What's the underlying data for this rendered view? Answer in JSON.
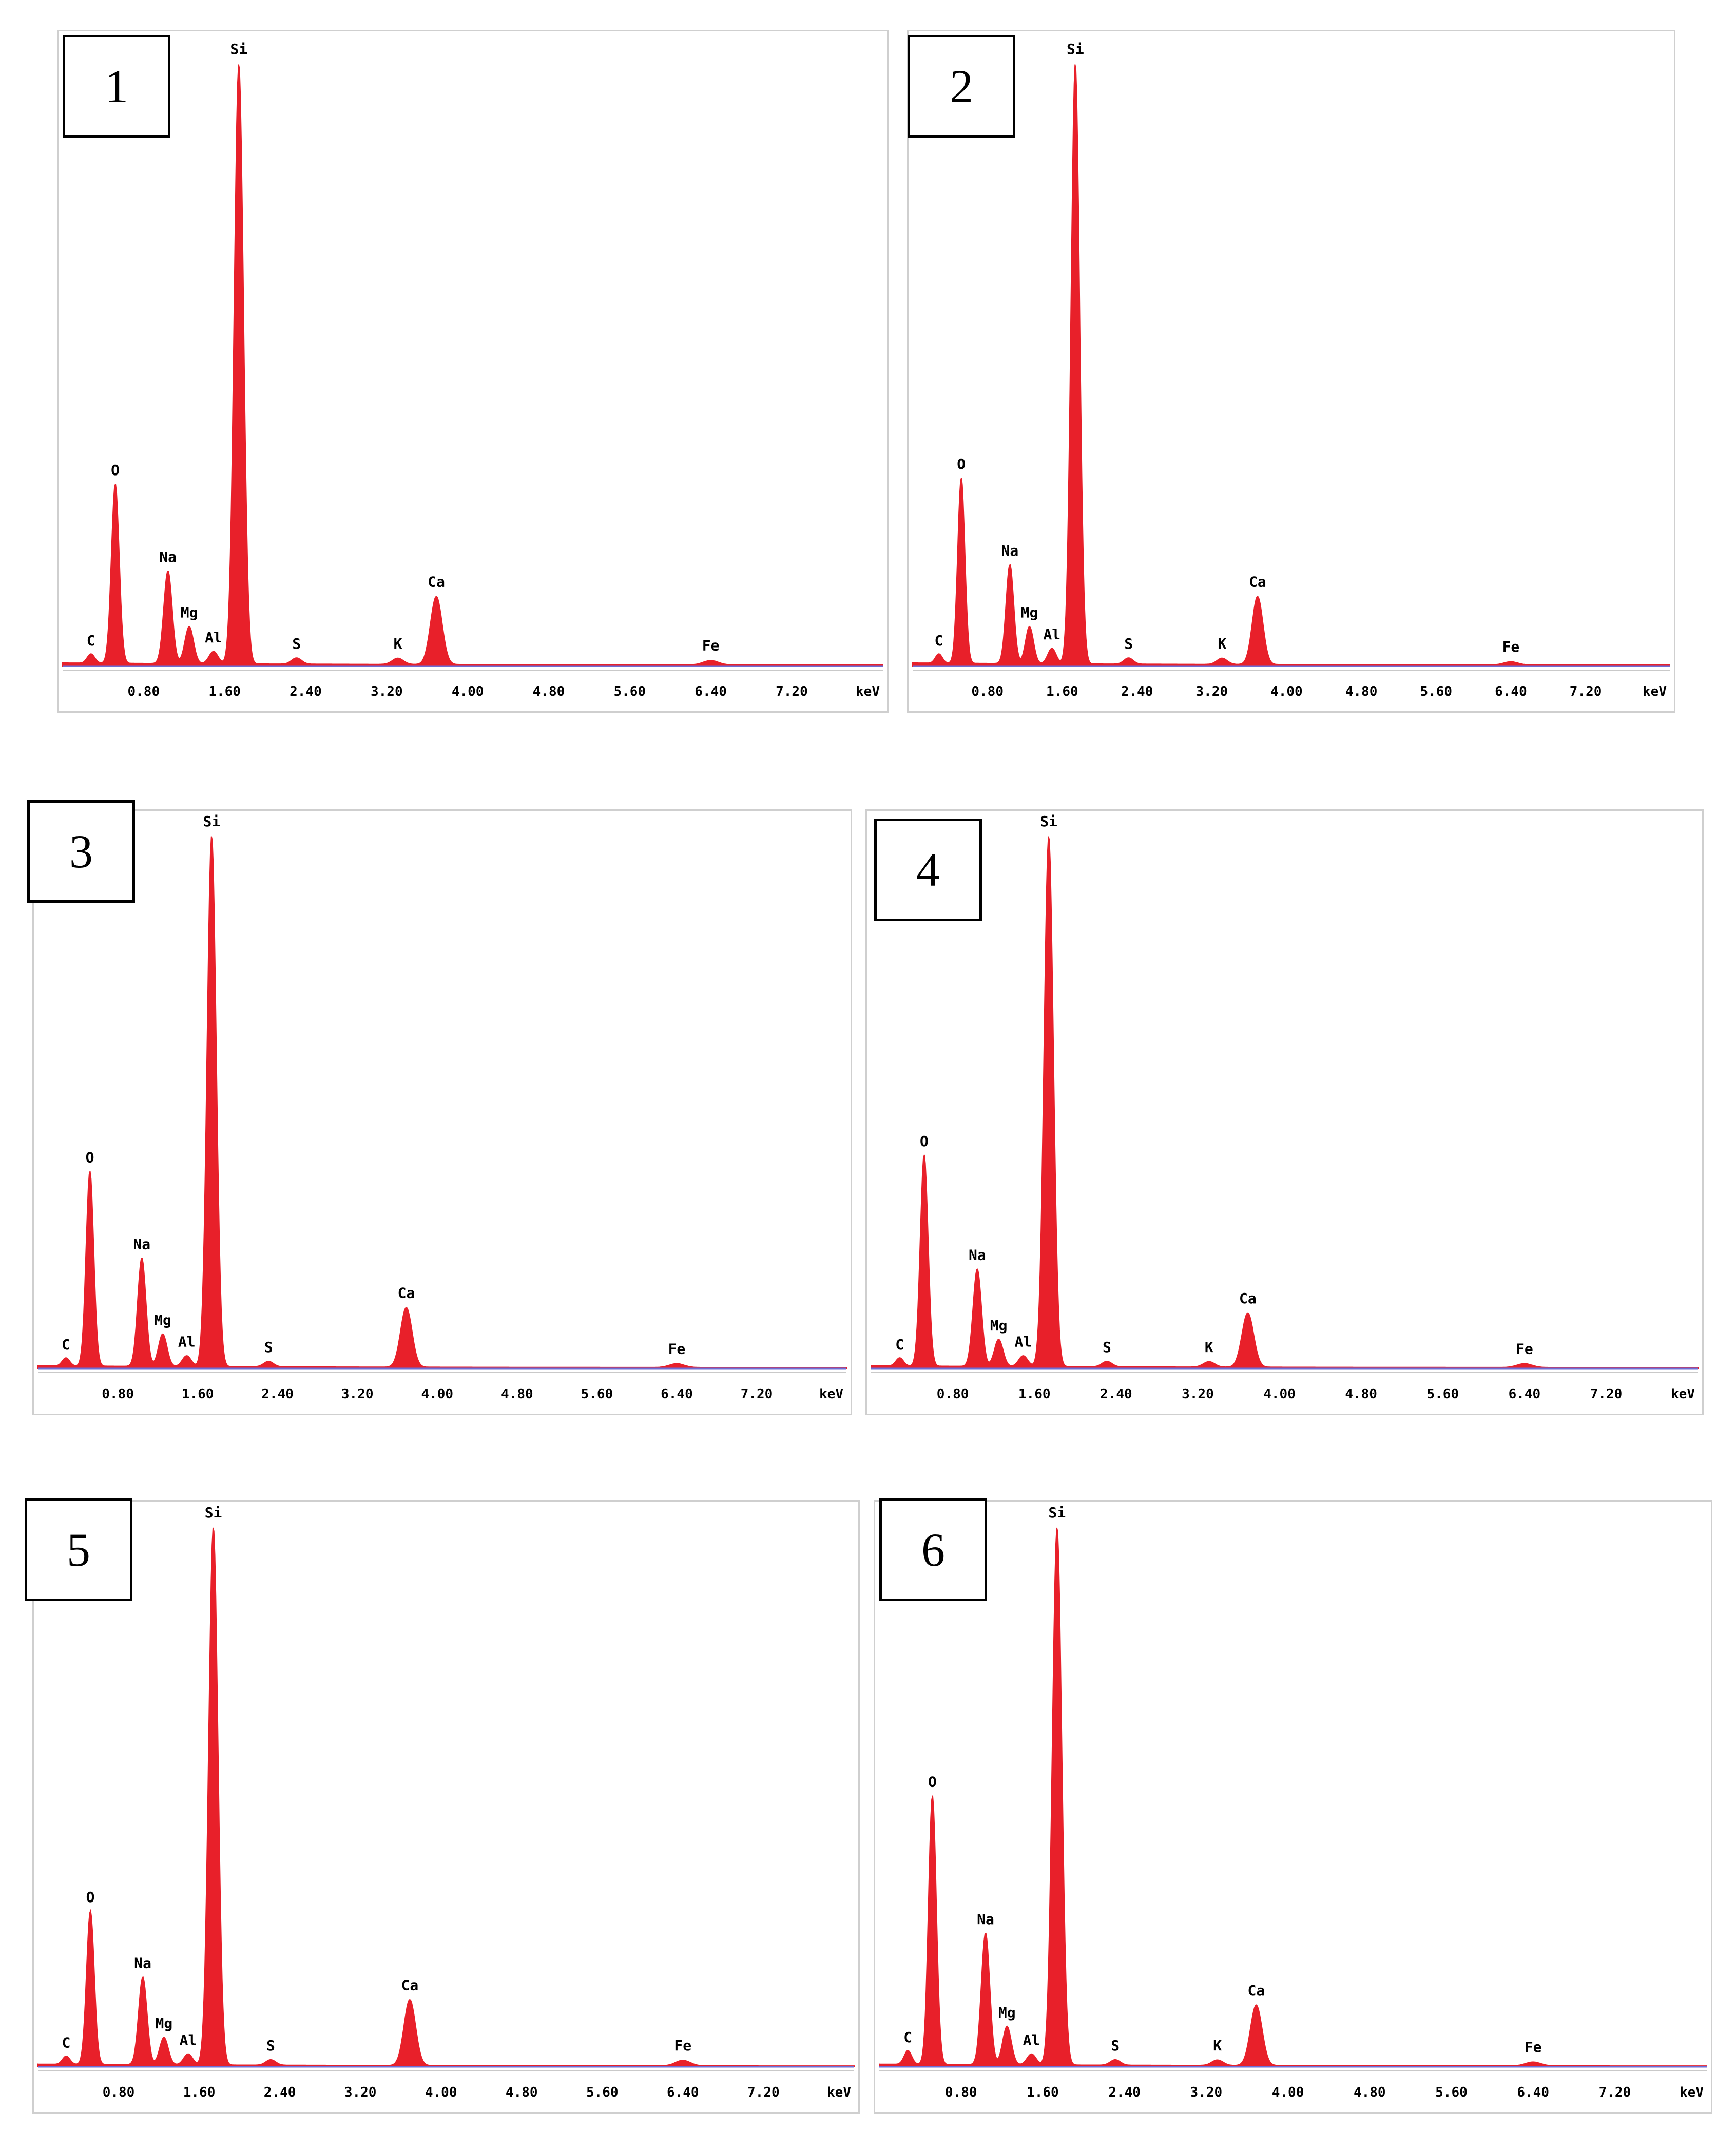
{
  "charts": [
    {
      "label": "1"
    },
    {
      "label": "2"
    },
    {
      "label": "3"
    },
    {
      "label": "4"
    },
    {
      "label": "5"
    },
    {
      "label": "6"
    }
  ],
  "chart_data": [
    {
      "type": "area",
      "panel_label": "1",
      "xlabel": "keV",
      "x_ticks": [
        "0.80",
        "1.60",
        "2.40",
        "3.20",
        "4.00",
        "4.80",
        "5.60",
        "6.40",
        "7.20"
      ],
      "xlim": [
        0,
        8.1
      ],
      "ylim": [
        0,
        100
      ],
      "series_color": "#e8202a",
      "peaks": [
        {
          "element": "C",
          "energy": 0.28,
          "height": 1.5
        },
        {
          "element": "O",
          "energy": 0.52,
          "height": 29
        },
        {
          "element": "Na",
          "energy": 1.04,
          "height": 15
        },
        {
          "element": "Mg",
          "energy": 1.25,
          "height": 6
        },
        {
          "element": "Al",
          "energy": 1.49,
          "height": 2
        },
        {
          "element": "Si",
          "energy": 1.74,
          "height": 97
        },
        {
          "element": "S",
          "energy": 2.31,
          "height": 1
        },
        {
          "element": "K",
          "energy": 3.31,
          "height": 1
        },
        {
          "element": "Ca",
          "energy": 3.69,
          "height": 11
        },
        {
          "element": "Fe",
          "energy": 6.4,
          "height": 0.7
        }
      ]
    },
    {
      "type": "area",
      "panel_label": "2",
      "xlabel": "keV",
      "x_ticks": [
        "0.80",
        "1.60",
        "2.40",
        "3.20",
        "4.00",
        "4.80",
        "5.60",
        "6.40",
        "7.20"
      ],
      "xlim": [
        0,
        8.1
      ],
      "ylim": [
        0,
        100
      ],
      "series_color": "#e8202a",
      "peaks": [
        {
          "element": "C",
          "energy": 0.28,
          "height": 1.5
        },
        {
          "element": "O",
          "energy": 0.52,
          "height": 30
        },
        {
          "element": "Na",
          "energy": 1.04,
          "height": 16
        },
        {
          "element": "Mg",
          "energy": 1.25,
          "height": 6
        },
        {
          "element": "Al",
          "energy": 1.49,
          "height": 2.5
        },
        {
          "element": "Si",
          "energy": 1.74,
          "height": 97
        },
        {
          "element": "S",
          "energy": 2.31,
          "height": 1
        },
        {
          "element": "K",
          "energy": 3.31,
          "height": 1
        },
        {
          "element": "Ca",
          "energy": 3.69,
          "height": 11
        },
        {
          "element": "Fe",
          "energy": 6.4,
          "height": 0.5
        }
      ]
    },
    {
      "type": "area",
      "panel_label": "3",
      "xlabel": "keV",
      "x_ticks": [
        "0.80",
        "1.60",
        "2.40",
        "3.20",
        "4.00",
        "4.80",
        "5.60",
        "6.40",
        "7.20"
      ],
      "xlim": [
        0,
        8.1
      ],
      "ylim": [
        0,
        100
      ],
      "series_color": "#e8202a",
      "peaks": [
        {
          "element": "C",
          "energy": 0.28,
          "height": 1.5
        },
        {
          "element": "O",
          "energy": 0.52,
          "height": 36
        },
        {
          "element": "Na",
          "energy": 1.04,
          "height": 20
        },
        {
          "element": "Mg",
          "energy": 1.25,
          "height": 6
        },
        {
          "element": "Al",
          "energy": 1.49,
          "height": 2
        },
        {
          "element": "Si",
          "energy": 1.74,
          "height": 98
        },
        {
          "element": "S",
          "energy": 2.31,
          "height": 1
        },
        {
          "element": "Ca",
          "energy": 3.69,
          "height": 11
        },
        {
          "element": "Fe",
          "energy": 6.4,
          "height": 0.7
        }
      ]
    },
    {
      "type": "area",
      "panel_label": "4",
      "xlabel": "keV",
      "x_ticks": [
        "0.80",
        "1.60",
        "2.40",
        "3.20",
        "4.00",
        "4.80",
        "5.60",
        "6.40",
        "7.20"
      ],
      "xlim": [
        0,
        8.1
      ],
      "ylim": [
        0,
        100
      ],
      "series_color": "#e8202a",
      "peaks": [
        {
          "element": "C",
          "energy": 0.28,
          "height": 1.5
        },
        {
          "element": "O",
          "energy": 0.52,
          "height": 39
        },
        {
          "element": "Na",
          "energy": 1.04,
          "height": 18
        },
        {
          "element": "Mg",
          "energy": 1.25,
          "height": 5
        },
        {
          "element": "Al",
          "energy": 1.49,
          "height": 2
        },
        {
          "element": "Si",
          "energy": 1.74,
          "height": 98
        },
        {
          "element": "S",
          "energy": 2.31,
          "height": 1
        },
        {
          "element": "K",
          "energy": 3.31,
          "height": 1
        },
        {
          "element": "Ca",
          "energy": 3.69,
          "height": 10
        },
        {
          "element": "Fe",
          "energy": 6.4,
          "height": 0.7
        }
      ]
    },
    {
      "type": "area",
      "panel_label": "5",
      "xlabel": "keV",
      "x_ticks": [
        "0.80",
        "1.60",
        "2.40",
        "3.20",
        "4.00",
        "4.80",
        "5.60",
        "6.40",
        "7.20"
      ],
      "xlim": [
        0,
        8.1
      ],
      "ylim": [
        0,
        100
      ],
      "series_color": "#e8202a",
      "peaks": [
        {
          "element": "C",
          "energy": 0.28,
          "height": 1.5
        },
        {
          "element": "O",
          "energy": 0.52,
          "height": 28
        },
        {
          "element": "Na",
          "energy": 1.04,
          "height": 16
        },
        {
          "element": "Mg",
          "energy": 1.25,
          "height": 5
        },
        {
          "element": "Al",
          "energy": 1.49,
          "height": 2
        },
        {
          "element": "Si",
          "energy": 1.74,
          "height": 98
        },
        {
          "element": "S",
          "energy": 2.31,
          "height": 1
        },
        {
          "element": "Ca",
          "energy": 3.69,
          "height": 12
        },
        {
          "element": "Fe",
          "energy": 6.4,
          "height": 1
        }
      ]
    },
    {
      "type": "area",
      "panel_label": "6",
      "xlabel": "keV",
      "x_ticks": [
        "0.80",
        "1.60",
        "2.40",
        "3.20",
        "4.00",
        "4.80",
        "5.60",
        "6.40",
        "7.20"
      ],
      "xlim": [
        0,
        8.1
      ],
      "ylim": [
        0,
        100
      ],
      "series_color": "#e8202a",
      "peaks": [
        {
          "element": "C",
          "energy": 0.28,
          "height": 2.5
        },
        {
          "element": "O",
          "energy": 0.52,
          "height": 49
        },
        {
          "element": "Na",
          "energy": 1.04,
          "height": 24
        },
        {
          "element": "Mg",
          "energy": 1.25,
          "height": 7
        },
        {
          "element": "Al",
          "energy": 1.49,
          "height": 2
        },
        {
          "element": "Si",
          "energy": 1.74,
          "height": 98
        },
        {
          "element": "S",
          "energy": 2.31,
          "height": 1
        },
        {
          "element": "K",
          "energy": 3.31,
          "height": 1
        },
        {
          "element": "Ca",
          "energy": 3.69,
          "height": 11
        },
        {
          "element": "Fe",
          "energy": 6.4,
          "height": 0.7
        }
      ]
    }
  ]
}
